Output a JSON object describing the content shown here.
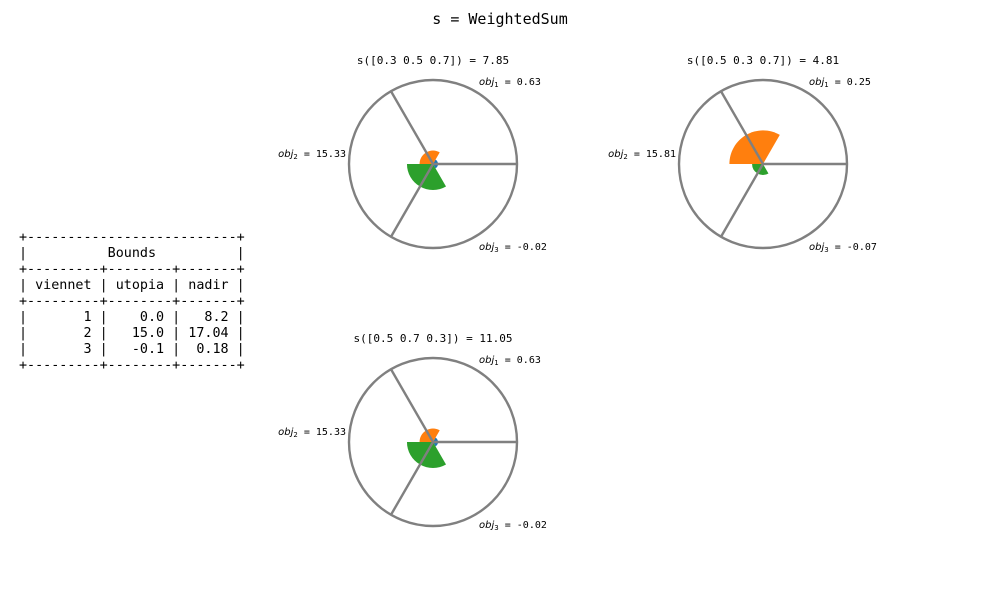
{
  "title": "s = WeightedSum",
  "colors": {
    "circle": "#808080",
    "obj1": "#1f77b4",
    "obj2": "#ff7f0e",
    "obj3": "#2ca02c"
  },
  "bounds_table": {
    "title": "Bounds",
    "columns": [
      "viennet",
      "utopia",
      "nadir"
    ],
    "rows": [
      [
        "1",
        "0.0",
        "8.2"
      ],
      [
        "2",
        "15.0",
        "17.04"
      ],
      [
        "3",
        "-0.1",
        "0.18"
      ]
    ]
  },
  "chart_data": [
    {
      "type": "polar-wedge",
      "title": "s([0.3 0.5 0.7]) = 7.85",
      "axes": [
        {
          "name": "obj",
          "sub": "1",
          "value_label": " = 0.63",
          "value": 0.63,
          "normalized": 0.06
        },
        {
          "name": "obj",
          "sub": "2",
          "value_label": " = 15.33",
          "value": 15.33,
          "normalized": 0.16
        },
        {
          "name": "obj",
          "sub": "3",
          "value_label": " = -0.02",
          "value": -0.02,
          "normalized": 0.31
        }
      ]
    },
    {
      "type": "polar-wedge",
      "title": "s([0.5 0.3 0.7]) = 4.81",
      "axes": [
        {
          "name": "obj",
          "sub": "1",
          "value_label": " = 0.25",
          "value": 0.25,
          "normalized": 0.01
        },
        {
          "name": "obj",
          "sub": "2",
          "value_label": " = 15.81",
          "value": 15.81,
          "normalized": 0.4
        },
        {
          "name": "obj",
          "sub": "3",
          "value_label": " = -0.07",
          "value": -0.07,
          "normalized": 0.13
        }
      ]
    },
    {
      "type": "polar-wedge",
      "title": "s([0.5 0.7 0.3]) = 11.05",
      "axes": [
        {
          "name": "obj",
          "sub": "1",
          "value_label": " = 0.63",
          "value": 0.63,
          "normalized": 0.06
        },
        {
          "name": "obj",
          "sub": "2",
          "value_label": " = 15.33",
          "value": 15.33,
          "normalized": 0.16
        },
        {
          "name": "obj",
          "sub": "3",
          "value_label": " = -0.02",
          "value": -0.02,
          "normalized": 0.31
        }
      ]
    }
  ]
}
